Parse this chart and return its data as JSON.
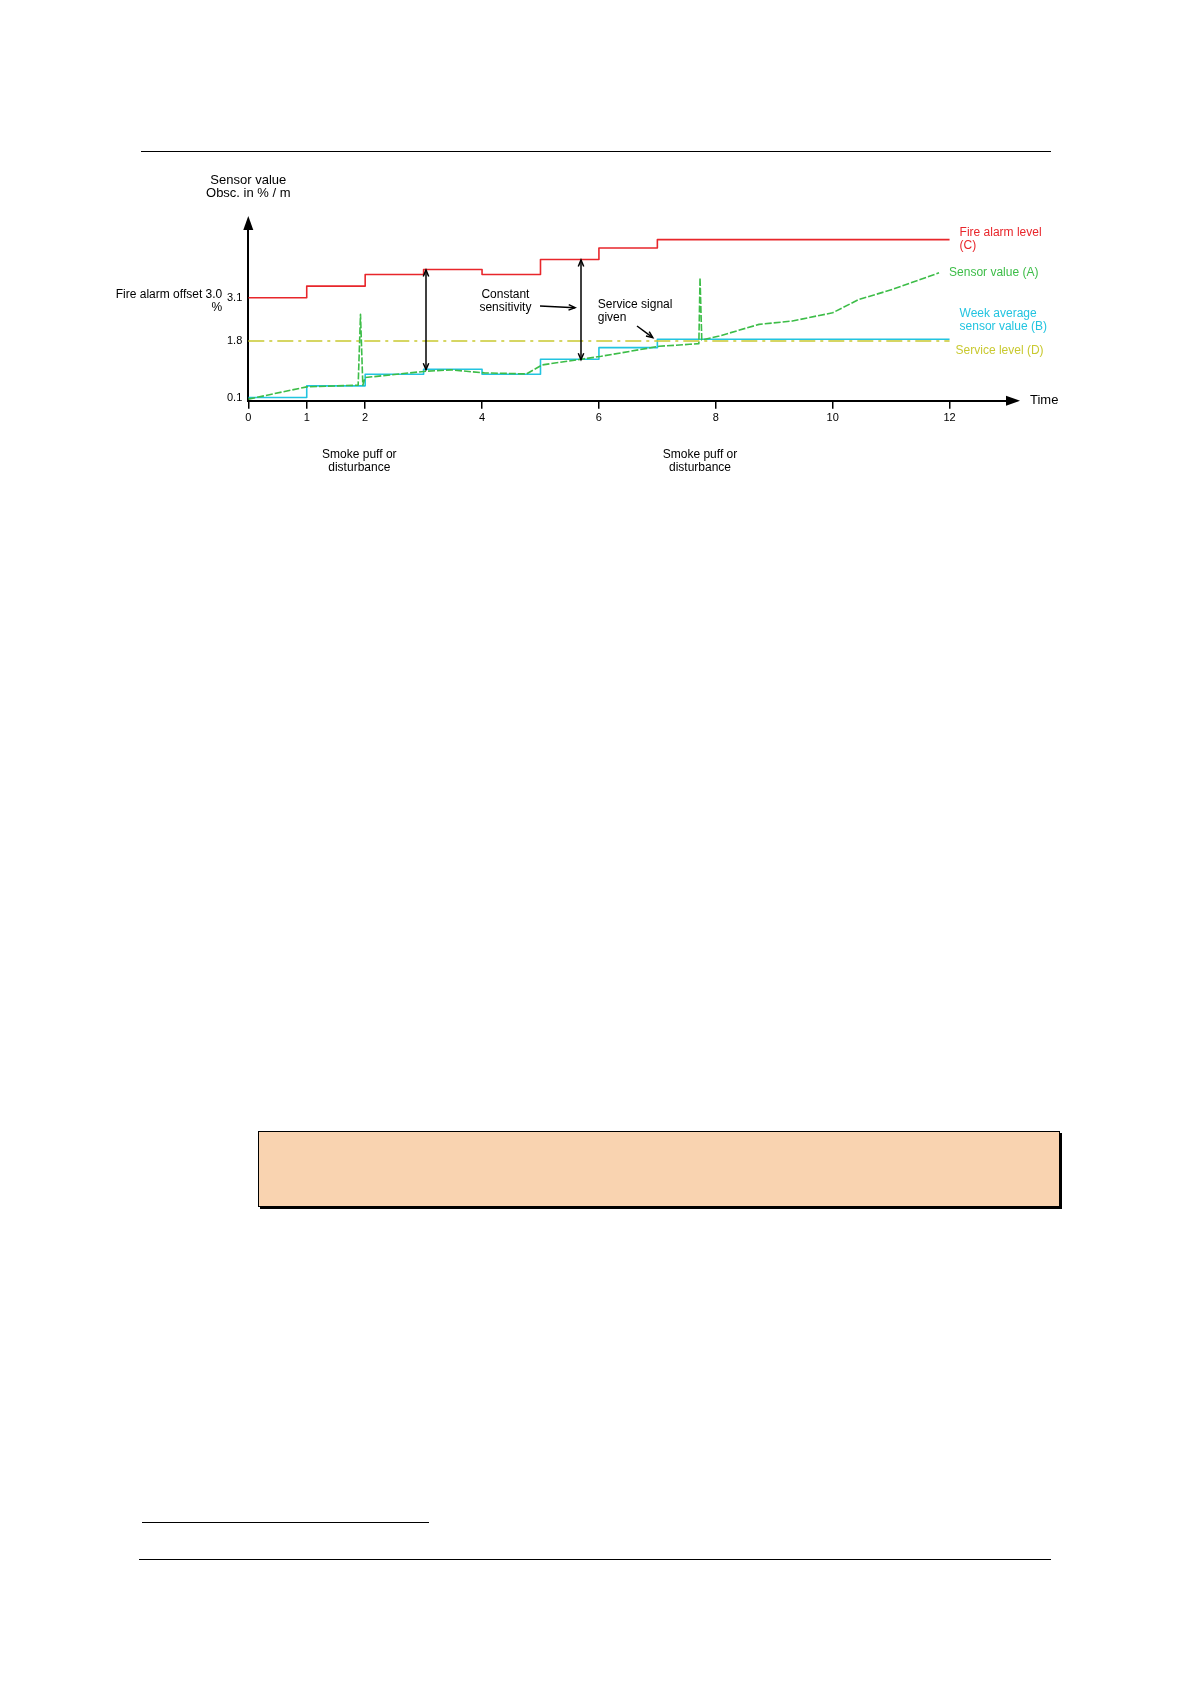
{
  "chart_data": {
    "type": "step",
    "xlabel": "Time",
    "ylabel": "Sensor value Obsc. in % / m",
    "xlim": [
      0,
      13
    ],
    "xticks": [
      0,
      1,
      2,
      4,
      6,
      8,
      10,
      12
    ],
    "ylim": [
      0,
      5.2
    ],
    "yticks": [
      0.1,
      1.8,
      3.1
    ],
    "series": [
      {
        "name": "Fire alarm level (C)",
        "type": "step",
        "color": "#e8262b",
        "line_style": "solid",
        "x": [
          0,
          1,
          2,
          3,
          4,
          5,
          6,
          7,
          12
        ],
        "values": [
          3.1,
          3.45,
          3.8,
          3.95,
          3.8,
          4.25,
          4.6,
          4.85,
          4.85
        ]
      },
      {
        "name": "Sensor value (A)",
        "type": "line",
        "color": "#3dbd48",
        "line_style": "dashed",
        "x": [
          0,
          1,
          1.88,
          1.92,
          1.96,
          2,
          3.04,
          3.47,
          4.04,
          4.76,
          5.03,
          5.73,
          6.04,
          7.03,
          7.55,
          7.71,
          7.73,
          7.76,
          8.06,
          8.74,
          9.31,
          10,
          10.45,
          11.02,
          11.82
        ],
        "values": [
          0.05,
          0.42,
          0.47,
          2.6,
          0.47,
          0.7,
          0.89,
          0.93,
          0.84,
          0.81,
          1.08,
          1.26,
          1.34,
          1.64,
          1.7,
          1.72,
          3.7,
          1.83,
          1.95,
          2.3,
          2.4,
          2.65,
          3.05,
          3.35,
          3.85
        ]
      },
      {
        "name": "Week average sensor value (B)",
        "type": "step",
        "color": "#22c4e0",
        "line_style": "solid",
        "x": [
          0,
          1,
          2,
          3,
          4,
          5,
          6,
          7,
          12
        ],
        "values": [
          0.1,
          0.45,
          0.8,
          0.95,
          0.8,
          1.25,
          1.6,
          1.85,
          1.85
        ]
      }
    ],
    "ref_lines": [
      {
        "axis": "y",
        "value": 1.8,
        "label": "Service level (D)",
        "color": "#c9c930",
        "line_style": "dashed"
      }
    ],
    "annotations": [
      "Constant sensitivity",
      "Service signal given",
      "Smoke puff or disturbance",
      "Smoke puff or disturbance",
      "Fire alarm offset 3.0 %"
    ]
  }
}
